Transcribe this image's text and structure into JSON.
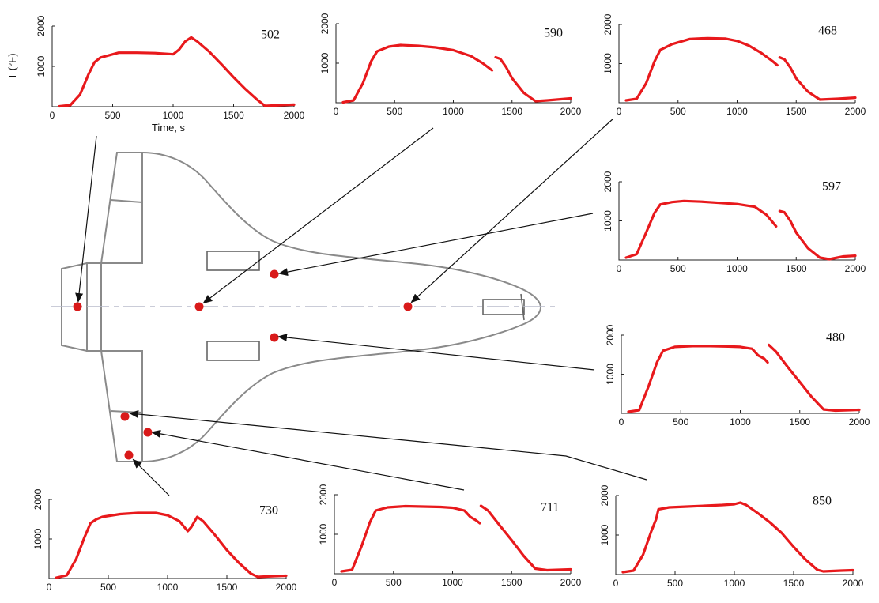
{
  "diagram": {
    "plots": [
      {
        "id": "502",
        "title": "502",
        "ylabel": "T (°F)",
        "xlabel": "Time, s",
        "xticks": [
          "0",
          "500",
          "1000",
          "1500",
          "2000"
        ],
        "yticks": [
          "1000",
          "2000"
        ],
        "xlim": [
          0,
          2000
        ],
        "ylim": [
          0,
          2000
        ],
        "series": [
          [
            60,
            10
          ],
          [
            150,
            40
          ],
          [
            230,
            300
          ],
          [
            300,
            800
          ],
          [
            350,
            1100
          ],
          [
            400,
            1220
          ],
          [
            550,
            1340
          ],
          [
            700,
            1340
          ],
          [
            850,
            1330
          ],
          [
            1000,
            1300
          ],
          [
            1050,
            1420
          ],
          [
            1100,
            1620
          ],
          [
            1150,
            1720
          ],
          [
            1200,
            1620
          ],
          [
            1300,
            1360
          ],
          [
            1400,
            1050
          ],
          [
            1500,
            730
          ],
          [
            1600,
            430
          ],
          [
            1700,
            160
          ],
          [
            1760,
            20
          ],
          [
            1900,
            40
          ],
          [
            2000,
            50
          ]
        ]
      },
      {
        "id": "590",
        "title": "590",
        "xticks": [
          "0",
          "500",
          "1000",
          "1500",
          "2000"
        ],
        "yticks": [
          "1000",
          "2000"
        ],
        "xlim": [
          0,
          2000
        ],
        "ylim": [
          0,
          2000
        ],
        "series": [
          [
            60,
            10
          ],
          [
            150,
            60
          ],
          [
            230,
            500
          ],
          [
            300,
            1050
          ],
          [
            350,
            1300
          ],
          [
            450,
            1420
          ],
          [
            550,
            1460
          ],
          [
            700,
            1440
          ],
          [
            850,
            1400
          ],
          [
            1000,
            1330
          ],
          [
            1150,
            1180
          ],
          [
            1250,
            1000
          ],
          [
            1330,
            820
          ]
        ],
        "series2": [
          [
            1360,
            1150
          ],
          [
            1400,
            1110
          ],
          [
            1450,
            900
          ],
          [
            1500,
            620
          ],
          [
            1600,
            250
          ],
          [
            1700,
            40
          ],
          [
            1800,
            60
          ],
          [
            2000,
            110
          ]
        ]
      },
      {
        "id": "468",
        "title": "468",
        "xticks": [
          "0",
          "500",
          "1000",
          "1500",
          "2000"
        ],
        "yticks": [
          "1000",
          "2000"
        ],
        "xlim": [
          0,
          2000
        ],
        "ylim": [
          0,
          2000
        ],
        "series": [
          [
            60,
            60
          ],
          [
            150,
            100
          ],
          [
            230,
            500
          ],
          [
            300,
            1050
          ],
          [
            350,
            1350
          ],
          [
            450,
            1500
          ],
          [
            600,
            1630
          ],
          [
            750,
            1650
          ],
          [
            900,
            1640
          ],
          [
            1000,
            1580
          ],
          [
            1100,
            1460
          ],
          [
            1200,
            1280
          ],
          [
            1300,
            1060
          ],
          [
            1340,
            960
          ]
        ],
        "series2": [
          [
            1360,
            1160
          ],
          [
            1400,
            1110
          ],
          [
            1450,
            900
          ],
          [
            1500,
            620
          ],
          [
            1600,
            280
          ],
          [
            1700,
            80
          ],
          [
            1850,
            100
          ],
          [
            2000,
            130
          ]
        ]
      },
      {
        "id": "597",
        "title": "597",
        "xticks": [
          "0",
          "500",
          "1000",
          "1500",
          "2000"
        ],
        "yticks": [
          "1000",
          "2000"
        ],
        "xlim": [
          0,
          2000
        ],
        "ylim": [
          0,
          2000
        ],
        "series": [
          [
            60,
            60
          ],
          [
            150,
            150
          ],
          [
            230,
            700
          ],
          [
            300,
            1200
          ],
          [
            350,
            1420
          ],
          [
            450,
            1480
          ],
          [
            550,
            1510
          ],
          [
            700,
            1490
          ],
          [
            850,
            1460
          ],
          [
            1000,
            1430
          ],
          [
            1150,
            1360
          ],
          [
            1250,
            1150
          ],
          [
            1330,
            860
          ]
        ],
        "series2": [
          [
            1360,
            1250
          ],
          [
            1400,
            1220
          ],
          [
            1450,
            1000
          ],
          [
            1500,
            700
          ],
          [
            1600,
            300
          ],
          [
            1700,
            60
          ],
          [
            1780,
            20
          ],
          [
            1900,
            90
          ],
          [
            2000,
            110
          ]
        ]
      },
      {
        "id": "480",
        "title": "480",
        "xticks": [
          "0",
          "500",
          "1000",
          "1500",
          "2000"
        ],
        "yticks": [
          "1000",
          "2000"
        ],
        "xlim": [
          0,
          2000
        ],
        "ylim": [
          0,
          2000
        ],
        "series": [
          [
            60,
            40
          ],
          [
            150,
            80
          ],
          [
            230,
            700
          ],
          [
            300,
            1300
          ],
          [
            350,
            1600
          ],
          [
            450,
            1700
          ],
          [
            600,
            1720
          ],
          [
            750,
            1720
          ],
          [
            900,
            1710
          ],
          [
            1000,
            1700
          ],
          [
            1100,
            1650
          ],
          [
            1150,
            1480
          ],
          [
            1200,
            1400
          ],
          [
            1230,
            1300
          ]
        ],
        "series2": [
          [
            1240,
            1750
          ],
          [
            1300,
            1580
          ],
          [
            1400,
            1180
          ],
          [
            1500,
            800
          ],
          [
            1600,
            420
          ],
          [
            1700,
            100
          ],
          [
            1800,
            70
          ],
          [
            2000,
            90
          ]
        ]
      },
      {
        "id": "730",
        "title": "730",
        "xticks": [
          "0",
          "500",
          "1000",
          "1500",
          "2000"
        ],
        "yticks": [
          "1000",
          "2000"
        ],
        "xlim": [
          0,
          2000
        ],
        "ylim": [
          0,
          2000
        ],
        "series": [
          [
            60,
            20
          ],
          [
            150,
            80
          ],
          [
            230,
            500
          ],
          [
            300,
            1050
          ],
          [
            350,
            1400
          ],
          [
            400,
            1500
          ],
          [
            450,
            1560
          ],
          [
            600,
            1630
          ],
          [
            750,
            1660
          ],
          [
            900,
            1660
          ],
          [
            1000,
            1600
          ],
          [
            1100,
            1450
          ],
          [
            1170,
            1200
          ],
          [
            1200,
            1300
          ],
          [
            1250,
            1560
          ],
          [
            1300,
            1450
          ],
          [
            1400,
            1100
          ],
          [
            1500,
            720
          ],
          [
            1600,
            400
          ],
          [
            1700,
            130
          ],
          [
            1760,
            40
          ],
          [
            1900,
            60
          ],
          [
            2000,
            70
          ]
        ]
      },
      {
        "id": "711",
        "title": "711",
        "xticks": [
          "0",
          "500",
          "1000",
          "1500",
          "2000"
        ],
        "yticks": [
          "1000",
          "2000"
        ],
        "xlim": [
          0,
          2000
        ],
        "ylim": [
          0,
          2000
        ],
        "series": [
          [
            60,
            60
          ],
          [
            150,
            100
          ],
          [
            230,
            700
          ],
          [
            300,
            1300
          ],
          [
            350,
            1600
          ],
          [
            450,
            1680
          ],
          [
            600,
            1710
          ],
          [
            750,
            1700
          ],
          [
            900,
            1690
          ],
          [
            1000,
            1670
          ],
          [
            1100,
            1600
          ],
          [
            1150,
            1440
          ],
          [
            1200,
            1350
          ],
          [
            1230,
            1280
          ]
        ],
        "series2": [
          [
            1240,
            1720
          ],
          [
            1300,
            1600
          ],
          [
            1400,
            1220
          ],
          [
            1500,
            850
          ],
          [
            1600,
            460
          ],
          [
            1700,
            130
          ],
          [
            1800,
            90
          ],
          [
            2000,
            110
          ]
        ]
      },
      {
        "id": "850",
        "title": "850",
        "xticks": [
          "0",
          "500",
          "1000",
          "1500",
          "2000"
        ],
        "yticks": [
          "1000",
          "2000"
        ],
        "xlim": [
          0,
          2000
        ],
        "ylim": [
          0,
          2000
        ],
        "series": [
          [
            60,
            60
          ],
          [
            150,
            100
          ],
          [
            230,
            500
          ],
          [
            300,
            1100
          ],
          [
            340,
            1400
          ],
          [
            360,
            1650
          ],
          [
            450,
            1700
          ],
          [
            600,
            1720
          ],
          [
            750,
            1740
          ],
          [
            900,
            1760
          ],
          [
            1000,
            1780
          ],
          [
            1050,
            1820
          ],
          [
            1100,
            1760
          ],
          [
            1200,
            1550
          ],
          [
            1300,
            1320
          ],
          [
            1400,
            1050
          ],
          [
            1500,
            700
          ],
          [
            1600,
            380
          ],
          [
            1700,
            120
          ],
          [
            1750,
            80
          ],
          [
            1900,
            100
          ],
          [
            2000,
            110
          ]
        ]
      }
    ]
  }
}
